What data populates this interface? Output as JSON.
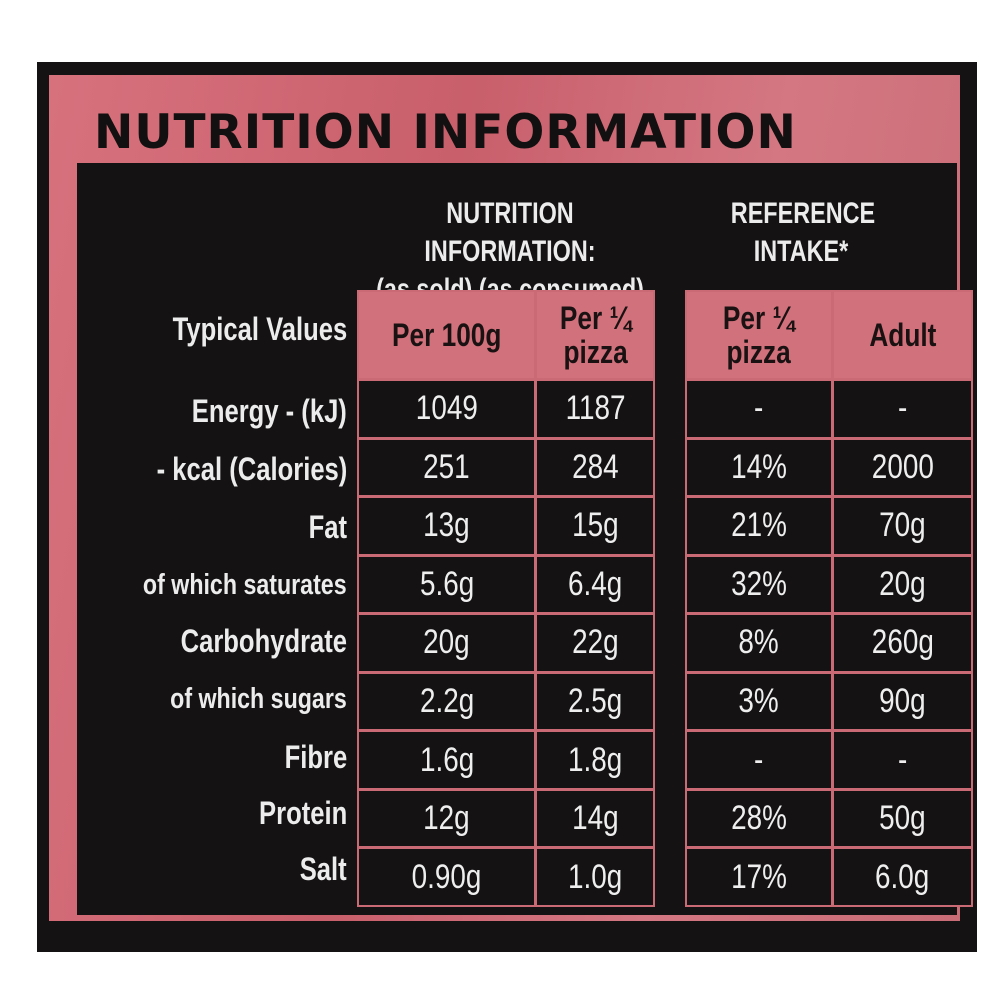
{
  "title": "NUTRITION INFORMATION",
  "header": {
    "nutrition_heading_line1": "NUTRITION INFORMATION:",
    "nutrition_heading_line2": "(as sold) (as consumed)",
    "reference_heading_line1": "REFERENCE",
    "reference_heading_line2": "INTAKE*",
    "typical_values": "Typical Values"
  },
  "columns": {
    "per100g": "Per 100g",
    "perQuarter_line1": "Per ¼",
    "perQuarter_line2": "pizza",
    "ri_perQuarter_line1": "Per ¼",
    "ri_perQuarter_line2": "pizza",
    "adult": "Adult"
  },
  "rows": [
    {
      "label": "Energy - (kJ)",
      "per100g": "1049",
      "perQuarter": "1187",
      "riQuarter": "-",
      "adult": "-"
    },
    {
      "label": "- kcal (Calories)",
      "per100g": "251",
      "perQuarter": "284",
      "riQuarter": "14%",
      "adult": "2000"
    },
    {
      "label": "Fat",
      "per100g": "13g",
      "perQuarter": "15g",
      "riQuarter": "21%",
      "adult": "70g"
    },
    {
      "label": "of which saturates",
      "per100g": "5.6g",
      "perQuarter": "6.4g",
      "riQuarter": "32%",
      "adult": "20g"
    },
    {
      "label": "Carbohydrate",
      "per100g": "20g",
      "perQuarter": "22g",
      "riQuarter": "8%",
      "adult": "260g"
    },
    {
      "label": "of which sugars",
      "per100g": "2.2g",
      "perQuarter": "2.5g",
      "riQuarter": "3%",
      "adult": "90g"
    },
    {
      "label": "Fibre",
      "per100g": "1.6g",
      "perQuarter": "1.8g",
      "riQuarter": "-",
      "adult": "-"
    },
    {
      "label": "Protein",
      "per100g": "12g",
      "perQuarter": "14g",
      "riQuarter": "28%",
      "adult": "50g"
    },
    {
      "label": "Salt",
      "per100g": "0.90g",
      "perQuarter": "1.0g",
      "riQuarter": "17%",
      "adult": "6.0g"
    }
  ]
}
